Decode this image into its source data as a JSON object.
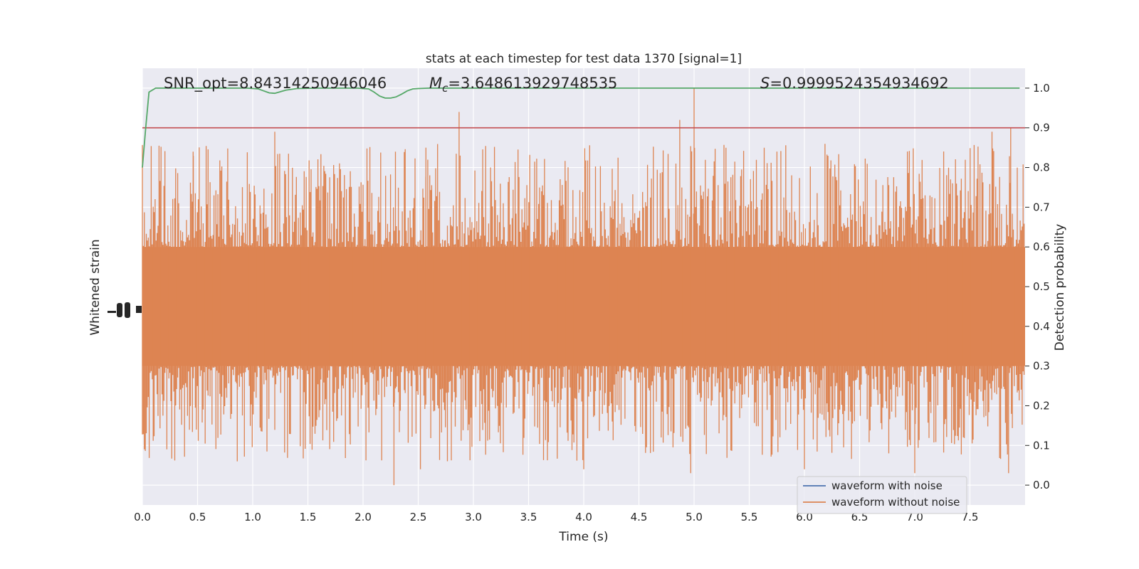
{
  "chart_data": {
    "type": "line",
    "title": "stats at each timestep for test data 1370 [signal=1]",
    "xlabel": "Time (s)",
    "ylabel_left": "Whitened strain",
    "ylabel_right": "Detection probability",
    "xlim": [
      0,
      8
    ],
    "ylim_right": [
      -0.05,
      1.05
    ],
    "x_ticks": [
      "0.0",
      "0.5",
      "1.0",
      "1.5",
      "2.0",
      "2.5",
      "3.0",
      "3.5",
      "4.0",
      "4.5",
      "5.0",
      "5.5",
      "6.0",
      "6.5",
      "7.0",
      "7.5"
    ],
    "y_ticks_right": [
      "0.0",
      "0.1",
      "0.2",
      "0.3",
      "0.4",
      "0.5",
      "0.6",
      "0.7",
      "0.8",
      "0.9",
      "1.0"
    ],
    "grid": true,
    "legend_position": "bottom-right",
    "annotations": {
      "snr": "SNR_opt=8.84314250946046",
      "mc_symbol": "M",
      "mc_subscript": "c",
      "mc_value": "=3.648613929748535",
      "s_symbol": "S",
      "s_value": "=0.9999524354934692"
    },
    "threshold": 0.9,
    "series": [
      {
        "name": "waveform with noise",
        "color": "#4c72b0",
        "description": "whitened strain trace (hidden behind orange trace)"
      },
      {
        "name": "waveform without noise",
        "color": "#dd8452",
        "envelope_core": [
          0.3,
          0.6
        ],
        "envelope_peaks": [
          0.0,
          1.0
        ]
      },
      {
        "name": "",
        "color": "#55a868",
        "x": [
          0.0,
          0.03,
          0.06,
          0.12,
          0.2,
          0.4,
          0.6,
          0.8,
          0.95,
          1.05,
          1.1,
          1.15,
          1.2,
          1.3,
          1.4,
          1.6,
          1.8,
          1.95,
          2.05,
          2.1,
          2.15,
          2.2,
          2.25,
          2.3,
          2.35,
          2.4,
          2.45,
          2.5,
          2.6,
          2.7,
          2.8,
          3.0,
          3.5,
          4.0,
          4.5,
          5.0,
          5.5,
          6.0,
          6.5,
          7.0,
          7.5,
          7.95
        ],
        "y": [
          0.8,
          0.9,
          0.99,
          1.0,
          1.0,
          1.0,
          1.0,
          1.0,
          1.0,
          0.998,
          0.993,
          0.988,
          0.987,
          0.995,
          0.999,
          1.0,
          1.0,
          1.0,
          0.998,
          0.99,
          0.98,
          0.975,
          0.975,
          0.978,
          0.985,
          0.993,
          0.998,
          0.999,
          1.0,
          1.0,
          1.0,
          1.0,
          1.0,
          1.0,
          1.0,
          1.0,
          1.0,
          1.0,
          1.0,
          1.0,
          1.0,
          1.0
        ]
      }
    ]
  }
}
